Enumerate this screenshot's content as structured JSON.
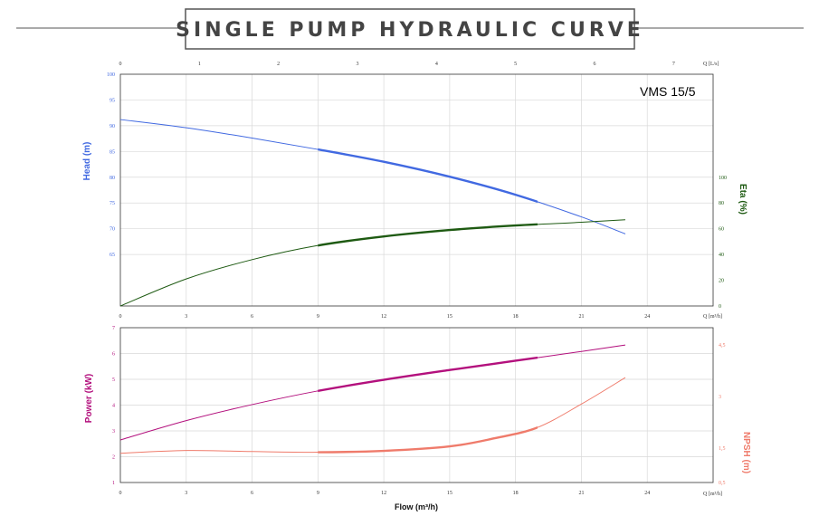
{
  "header": {
    "title": "SINGLE PUMP HYDRAULIC CURVE"
  },
  "colors": {
    "head": "#4169e1",
    "eta": "#1e5a12",
    "power": "#b3107d",
    "npsh": "#ef7b6b",
    "grid": "#d9d9d9",
    "axis": "#333333",
    "title_text": "#444444"
  },
  "chart_data": [
    {
      "type": "line",
      "title": "VMS 15/5",
      "xlabel": "Q [m³/h]",
      "x_ticks": [
        "0",
        "3",
        "6",
        "9",
        "12",
        "15",
        "18",
        "21",
        "24"
      ],
      "xlim": [
        0,
        27
      ],
      "top_xlabel": "Q [L/s]",
      "top_x_ticks": [
        "0",
        "1",
        "2",
        "3",
        "4",
        "5",
        "6",
        "7"
      ],
      "top_xlim": [
        0,
        7.5
      ],
      "ylabel_left": "Head (m)",
      "ylim_left": [
        55,
        100
      ],
      "y_ticks_left": [
        "100",
        "95",
        "90",
        "85",
        "80",
        "75",
        "70",
        "65"
      ],
      "ylabel_right": "Eta (%)",
      "ylim_right": [
        0,
        180
      ],
      "y_ticks_right": [
        "0",
        "20",
        "40",
        "60",
        "80",
        "100"
      ],
      "grid": true,
      "series": [
        {
          "name": "Head (m)",
          "axis": "left",
          "color_key": "head",
          "x": [
            0,
            3,
            6,
            9,
            12,
            15,
            18,
            21,
            23
          ],
          "y": [
            91.2,
            89.6,
            87.6,
            85.4,
            83.0,
            80.1,
            76.6,
            72.3,
            69.0
          ],
          "op_range": [
            9,
            19
          ]
        },
        {
          "name": "Eta (%)",
          "axis": "right",
          "color_key": "eta",
          "x": [
            0,
            3,
            6,
            9,
            12,
            15,
            18,
            21,
            23
          ],
          "y": [
            0,
            21,
            36,
            47,
            54,
            59,
            62.5,
            65,
            67
          ],
          "op_range": [
            9,
            19
          ]
        }
      ]
    },
    {
      "type": "line",
      "xlabel": "Flow (m³/h)",
      "x_ticks": [
        "0",
        "3",
        "6",
        "9",
        "12",
        "15",
        "18",
        "21",
        "24"
      ],
      "xlim": [
        0,
        27
      ],
      "corner_xlabel": "Q [m³/h]",
      "ylabel_left": "Power (kW)",
      "ylim_left": [
        1,
        7
      ],
      "y_ticks_left": [
        "7",
        "6",
        "5",
        "4",
        "3",
        "2",
        "1"
      ],
      "ylabel_right": "NPSH (m)",
      "ylim_right": [
        0.5,
        5
      ],
      "y_ticks_right": [
        "4,5",
        "3",
        "1,5",
        "0,5"
      ],
      "grid": true,
      "series": [
        {
          "name": "Power (kW)",
          "axis": "left",
          "color_key": "power",
          "x": [
            0,
            3,
            6,
            9,
            12,
            15,
            18,
            21,
            23
          ],
          "y": [
            2.65,
            3.4,
            4.02,
            4.55,
            4.98,
            5.36,
            5.72,
            6.08,
            6.33
          ],
          "op_range": [
            9,
            19
          ]
        },
        {
          "name": "NPSH (m)",
          "axis": "right",
          "color_key": "npsh",
          "x": [
            0,
            3,
            6,
            9,
            12,
            15,
            17,
            19,
            21,
            23
          ],
          "y": [
            1.35,
            1.43,
            1.4,
            1.38,
            1.42,
            1.55,
            1.78,
            2.1,
            2.78,
            3.55
          ],
          "op_range": [
            9,
            19
          ]
        }
      ]
    }
  ]
}
